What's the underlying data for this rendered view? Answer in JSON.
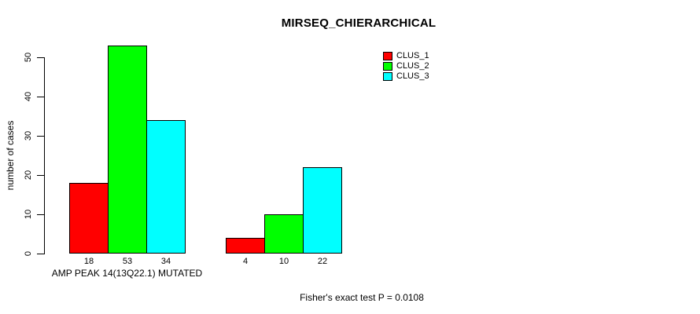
{
  "chart_data": {
    "type": "bar",
    "title": "MIRSEQ_CHIERARCHICAL",
    "ylabel": "number of cases",
    "xlabel": "AMP PEAK 14(13Q22.1) MUTATED",
    "footnote": "Fisher's exact test P = 0.0108",
    "yticks": [
      0,
      10,
      20,
      30,
      40,
      50
    ],
    "ylim": [
      0,
      55
    ],
    "grid": false,
    "legend_position": "top-right",
    "bar_outline_color": "#000000",
    "background_color": "#ffffff",
    "series": [
      {
        "name": "CLUS_1",
        "color": "#ff0000",
        "values": [
          18,
          4
        ]
      },
      {
        "name": "CLUS_2",
        "color": "#00ff00",
        "values": [
          53,
          10
        ]
      },
      {
        "name": "CLUS_3",
        "color": "#00ffff",
        "values": [
          34,
          22
        ]
      }
    ],
    "bar_value_labels": [
      [
        18,
        53,
        34
      ],
      [
        4,
        10,
        22
      ]
    ],
    "legend_entries": [
      "CLUS_1",
      "CLUS_2",
      "CLUS_3"
    ]
  }
}
